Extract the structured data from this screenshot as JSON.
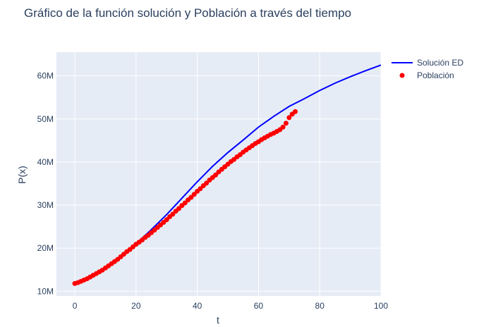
{
  "chart_data": {
    "type": "line",
    "title": "Gráfico de la función solución y Población a través del tiempo",
    "xlabel": "t",
    "ylabel": "P(x)",
    "xlim": [
      -6,
      100
    ],
    "ylim": [
      8900000,
      65500000
    ],
    "x_ticks": [
      0,
      20,
      40,
      60,
      80,
      100
    ],
    "x_tick_labels": [
      "0",
      "20",
      "40",
      "60",
      "80",
      "100"
    ],
    "y_ticks": [
      10000000,
      20000000,
      30000000,
      40000000,
      50000000,
      60000000
    ],
    "y_tick_labels": [
      "10M",
      "20M",
      "30M",
      "40M",
      "50M",
      "60M"
    ],
    "grid": true,
    "legend_position": "top-right outside",
    "series": [
      {
        "name": "Solución ED",
        "mode": "line",
        "color": "#0000ff",
        "x": [
          0,
          5,
          10,
          15,
          20,
          25,
          30,
          35,
          40,
          45,
          50,
          55,
          60,
          65,
          70,
          75,
          80,
          85,
          90,
          95,
          100
        ],
        "y": [
          11800000,
          13100000,
          15300000,
          18100000,
          21000000,
          24300000,
          27800000,
          31600000,
          35400000,
          39000000,
          42200000,
          45100000,
          48100000,
          50600000,
          52900000,
          54700000,
          56600000,
          58300000,
          59800000,
          61200000,
          62500000
        ]
      },
      {
        "name": "Población",
        "mode": "markers",
        "color": "#ff0000",
        "x": [
          0,
          1,
          2,
          3,
          4,
          5,
          6,
          7,
          8,
          9,
          10,
          11,
          12,
          13,
          14,
          15,
          16,
          17,
          18,
          19,
          20,
          21,
          22,
          23,
          24,
          25,
          26,
          27,
          28,
          29,
          30,
          31,
          32,
          33,
          34,
          35,
          36,
          37,
          38,
          39,
          40,
          41,
          42,
          43,
          44,
          45,
          46,
          47,
          48,
          49,
          50,
          51,
          52,
          53,
          54,
          55,
          56,
          57,
          58,
          59,
          60,
          61,
          62,
          63,
          64,
          65,
          66,
          67,
          68,
          69,
          70,
          71,
          72
        ],
        "y": [
          11800000,
          12000000,
          12300000,
          12600000,
          12900000,
          13300000,
          13700000,
          14100000,
          14500000,
          14900000,
          15400000,
          15900000,
          16400000,
          16900000,
          17400000,
          18000000,
          18600000,
          19200000,
          19700000,
          20300000,
          20900000,
          21400000,
          21900000,
          22500000,
          23000000,
          23600000,
          24200000,
          24800000,
          25400000,
          26000000,
          26600000,
          27300000,
          27900000,
          28600000,
          29200000,
          29900000,
          30500000,
          31200000,
          31800000,
          32500000,
          33200000,
          33800000,
          34500000,
          35100000,
          35800000,
          36400000,
          37000000,
          37700000,
          38300000,
          38900000,
          39500000,
          40100000,
          40600000,
          41200000,
          41700000,
          42300000,
          42800000,
          43300000,
          43800000,
          44300000,
          44700000,
          45200000,
          45600000,
          46000000,
          46400000,
          46700000,
          47100000,
          47500000,
          48100000,
          49000000,
          50300000,
          51100000,
          51700000
        ]
      }
    ]
  }
}
